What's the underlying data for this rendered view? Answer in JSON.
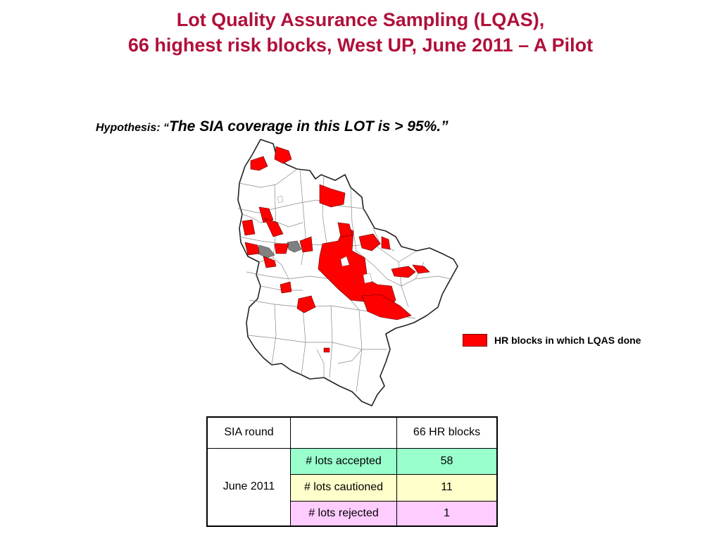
{
  "title": {
    "line1": "Lot Quality Assurance Sampling (LQAS),",
    "line2": "66 highest risk blocks, West UP, June 2011 – A Pilot"
  },
  "hypothesis": {
    "label": "Hypothesis:",
    "open_quote": "“",
    "statement": "The SIA coverage in this LOT is > 95%.”"
  },
  "map": {
    "highlight_color": "#ff0000",
    "other_color": "#808080",
    "base_color": "#ffffff"
  },
  "legend": {
    "label": "HR blocks in which LQAS done",
    "color": "#ff0000"
  },
  "table": {
    "header": {
      "col1": "SIA round",
      "col2": "",
      "col3": "66 HR blocks"
    },
    "round": "June 2011",
    "rows": [
      {
        "label": "# lots accepted",
        "value": "58",
        "color": "#99ffcc"
      },
      {
        "label": "# lots cautioned",
        "value": "11",
        "color": "#ffffcc"
      },
      {
        "label": "# lots rejected",
        "value": "1",
        "color": "#ffccff"
      }
    ]
  }
}
